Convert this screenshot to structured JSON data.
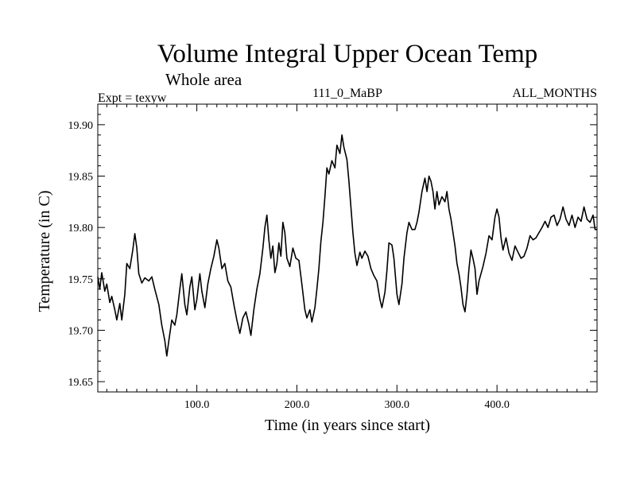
{
  "chart_data": {
    "type": "line",
    "title": "Volume Integral Upper Ocean Temp",
    "subtitle": "Whole area",
    "info_left": "Expt = texyw",
    "info_center": "111_0_MaBP",
    "info_right": "ALL_MONTHS",
    "xlabel": "Time (in years since start)",
    "ylabel": "Temperature (in C)",
    "xlim": [
      1,
      500
    ],
    "ylim": [
      19.64,
      19.92
    ],
    "x_ticks": [
      100,
      200,
      300,
      400
    ],
    "x_tick_labels": [
      "100.0",
      "200.0",
      "300.0",
      "400.0"
    ],
    "y_ticks": [
      19.65,
      19.7,
      19.75,
      19.8,
      19.85,
      19.9
    ],
    "y_tick_labels": [
      "19.65",
      "19.70",
      "19.75",
      "19.80",
      "19.85",
      "19.90"
    ],
    "grid": false,
    "series": [
      {
        "color": "#000000",
        "points": [
          [
            1,
            19.752
          ],
          [
            3,
            19.74
          ],
          [
            5,
            19.756
          ],
          [
            8,
            19.738
          ],
          [
            10,
            19.745
          ],
          [
            13,
            19.727
          ],
          [
            15,
            19.733
          ],
          [
            18,
            19.72
          ],
          [
            20,
            19.71
          ],
          [
            23,
            19.726
          ],
          [
            25,
            19.71
          ],
          [
            28,
            19.735
          ],
          [
            30,
            19.765
          ],
          [
            33,
            19.76
          ],
          [
            36,
            19.778
          ],
          [
            38,
            19.794
          ],
          [
            40,
            19.78
          ],
          [
            42,
            19.755
          ],
          [
            45,
            19.746
          ],
          [
            48,
            19.751
          ],
          [
            52,
            19.748
          ],
          [
            55,
            19.752
          ],
          [
            58,
            19.74
          ],
          [
            62,
            19.725
          ],
          [
            65,
            19.705
          ],
          [
            68,
            19.69
          ],
          [
            70,
            19.675
          ],
          [
            72,
            19.69
          ],
          [
            75,
            19.71
          ],
          [
            78,
            19.705
          ],
          [
            80,
            19.715
          ],
          [
            83,
            19.74
          ],
          [
            85,
            19.755
          ],
          [
            88,
            19.725
          ],
          [
            90,
            19.715
          ],
          [
            93,
            19.742
          ],
          [
            95,
            19.752
          ],
          [
            98,
            19.72
          ],
          [
            100,
            19.73
          ],
          [
            103,
            19.755
          ],
          [
            105,
            19.738
          ],
          [
            108,
            19.722
          ],
          [
            111,
            19.745
          ],
          [
            114,
            19.76
          ],
          [
            117,
            19.772
          ],
          [
            120,
            19.788
          ],
          [
            122,
            19.78
          ],
          [
            125,
            19.76
          ],
          [
            128,
            19.765
          ],
          [
            131,
            19.748
          ],
          [
            134,
            19.742
          ],
          [
            137,
            19.725
          ],
          [
            140,
            19.71
          ],
          [
            143,
            19.697
          ],
          [
            146,
            19.712
          ],
          [
            149,
            19.718
          ],
          [
            152,
            19.706
          ],
          [
            154,
            19.695
          ],
          [
            157,
            19.72
          ],
          [
            160,
            19.74
          ],
          [
            163,
            19.755
          ],
          [
            166,
            19.78
          ],
          [
            168,
            19.8
          ],
          [
            170,
            19.812
          ],
          [
            172,
            19.788
          ],
          [
            174,
            19.77
          ],
          [
            176,
            19.782
          ],
          [
            178,
            19.756
          ],
          [
            180,
            19.765
          ],
          [
            182,
            19.785
          ],
          [
            184,
            19.772
          ],
          [
            186,
            19.805
          ],
          [
            188,
            19.795
          ],
          [
            190,
            19.77
          ],
          [
            193,
            19.762
          ],
          [
            196,
            19.78
          ],
          [
            199,
            19.77
          ],
          [
            202,
            19.768
          ],
          [
            205,
            19.745
          ],
          [
            208,
            19.72
          ],
          [
            210,
            19.712
          ],
          [
            213,
            19.72
          ],
          [
            215,
            19.708
          ],
          [
            218,
            19.722
          ],
          [
            220,
            19.74
          ],
          [
            222,
            19.76
          ],
          [
            224,
            19.786
          ],
          [
            226,
            19.805
          ],
          [
            228,
            19.83
          ],
          [
            230,
            19.858
          ],
          [
            232,
            19.852
          ],
          [
            235,
            19.865
          ],
          [
            238,
            19.858
          ],
          [
            240,
            19.88
          ],
          [
            243,
            19.872
          ],
          [
            245,
            19.89
          ],
          [
            247,
            19.878
          ],
          [
            250,
            19.866
          ],
          [
            252,
            19.845
          ],
          [
            254,
            19.82
          ],
          [
            256,
            19.795
          ],
          [
            258,
            19.775
          ],
          [
            260,
            19.763
          ],
          [
            263,
            19.776
          ],
          [
            265,
            19.77
          ],
          [
            268,
            19.777
          ],
          [
            271,
            19.772
          ],
          [
            274,
            19.76
          ],
          [
            277,
            19.753
          ],
          [
            280,
            19.748
          ],
          [
            283,
            19.73
          ],
          [
            285,
            19.722
          ],
          [
            288,
            19.737
          ],
          [
            290,
            19.758
          ],
          [
            292,
            19.785
          ],
          [
            295,
            19.783
          ],
          [
            297,
            19.77
          ],
          [
            300,
            19.735
          ],
          [
            302,
            19.725
          ],
          [
            305,
            19.745
          ],
          [
            307,
            19.77
          ],
          [
            310,
            19.795
          ],
          [
            312,
            19.805
          ],
          [
            315,
            19.798
          ],
          [
            318,
            19.798
          ],
          [
            320,
            19.805
          ],
          [
            322,
            19.815
          ],
          [
            325,
            19.835
          ],
          [
            328,
            19.848
          ],
          [
            330,
            19.835
          ],
          [
            332,
            19.85
          ],
          [
            334,
            19.845
          ],
          [
            336,
            19.835
          ],
          [
            338,
            19.818
          ],
          [
            340,
            19.835
          ],
          [
            342,
            19.822
          ],
          [
            345,
            19.83
          ],
          [
            348,
            19.825
          ],
          [
            350,
            19.835
          ],
          [
            352,
            19.818
          ],
          [
            354,
            19.808
          ],
          [
            356,
            19.795
          ],
          [
            358,
            19.782
          ],
          [
            360,
            19.765
          ],
          [
            362,
            19.755
          ],
          [
            364,
            19.742
          ],
          [
            366,
            19.725
          ],
          [
            368,
            19.718
          ],
          [
            370,
            19.735
          ],
          [
            372,
            19.76
          ],
          [
            374,
            19.778
          ],
          [
            376,
            19.77
          ],
          [
            378,
            19.76
          ],
          [
            380,
            19.735
          ],
          [
            382,
            19.748
          ],
          [
            384,
            19.755
          ],
          [
            386,
            19.762
          ],
          [
            389,
            19.775
          ],
          [
            392,
            19.792
          ],
          [
            395,
            19.788
          ],
          [
            398,
            19.81
          ],
          [
            400,
            19.818
          ],
          [
            402,
            19.81
          ],
          [
            404,
            19.79
          ],
          [
            406,
            19.778
          ],
          [
            409,
            19.79
          ],
          [
            412,
            19.775
          ],
          [
            415,
            19.768
          ],
          [
            418,
            19.782
          ],
          [
            421,
            19.776
          ],
          [
            424,
            19.77
          ],
          [
            427,
            19.772
          ],
          [
            430,
            19.78
          ],
          [
            433,
            19.792
          ],
          [
            436,
            19.788
          ],
          [
            439,
            19.79
          ],
          [
            442,
            19.795
          ],
          [
            445,
            19.8
          ],
          [
            448,
            19.806
          ],
          [
            451,
            19.8
          ],
          [
            454,
            19.81
          ],
          [
            457,
            19.812
          ],
          [
            460,
            19.802
          ],
          [
            463,
            19.808
          ],
          [
            466,
            19.82
          ],
          [
            469,
            19.808
          ],
          [
            472,
            19.802
          ],
          [
            475,
            19.812
          ],
          [
            478,
            19.8
          ],
          [
            481,
            19.81
          ],
          [
            484,
            19.806
          ],
          [
            487,
            19.82
          ],
          [
            490,
            19.808
          ],
          [
            493,
            19.805
          ],
          [
            496,
            19.812
          ],
          [
            498,
            19.798
          ],
          [
            500,
            19.798
          ]
        ]
      }
    ]
  }
}
